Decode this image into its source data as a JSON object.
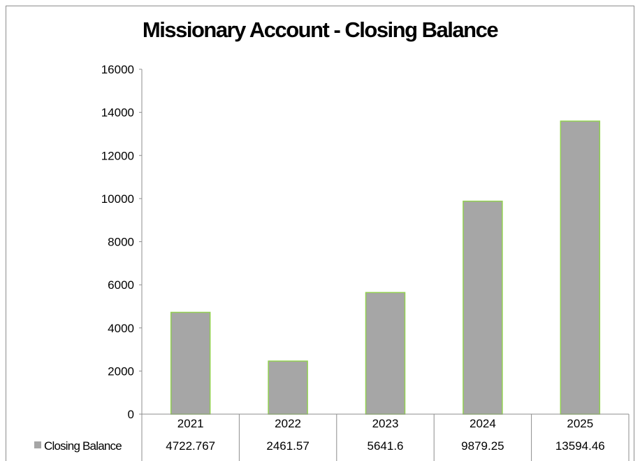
{
  "chart_data": {
    "type": "bar",
    "title": "Missionary Account - Closing Balance",
    "categories": [
      "2021",
      "2022",
      "2023",
      "2024",
      "2025"
    ],
    "series": [
      {
        "name": "Closing Balance",
        "values": [
          4722.767,
          2461.57,
          5641.6,
          9879.25,
          13594.46
        ],
        "value_labels": [
          "4722.767",
          "2461.57",
          "5641.6",
          "9879.25",
          "13594.46"
        ],
        "color": "#a6a6a6",
        "border_color": "#92d050"
      }
    ],
    "y_ticks": [
      "0",
      "2000",
      "4000",
      "6000",
      "8000",
      "10000",
      "12000",
      "14000",
      "16000"
    ],
    "ylim": [
      0,
      16000
    ],
    "xlabel": "",
    "ylabel": "",
    "grid": false,
    "legend": "data-table-row"
  }
}
